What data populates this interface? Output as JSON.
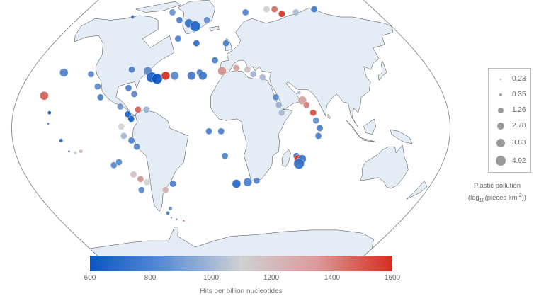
{
  "colors": {
    "ocean": "#ffffff",
    "land": "#e4ecf5",
    "coast": "#2b2b2b",
    "frame": "#8a8a8a",
    "scale_low": "#0a56c3",
    "scale_mid": "#cfd1d4",
    "scale_high": "#d62c1e"
  },
  "size_legend": {
    "values": [
      "0.23",
      "0.35",
      "1.26",
      "2.78",
      "3.83",
      "4.92"
    ],
    "title_line1": "Plastic pollution",
    "title_line2_prefix": "(log",
    "title_line2_sub": "10",
    "title_line2_mid": "(pieces km",
    "title_line2_sup": "-2",
    "title_line2_suffix": "))"
  },
  "color_scale": {
    "ticks": [
      "600",
      "800",
      "1000",
      "1200",
      "1400",
      "1600"
    ],
    "title": "Hits per billion nucleotides",
    "min": 600,
    "max": 1600
  },
  "samples": [
    {
      "lon": -117,
      "lat": 72,
      "value": 720,
      "plastic": 1.26
    },
    {
      "lon": -72,
      "lat": 75,
      "value": 840,
      "plastic": 2.78
    },
    {
      "lon": -60,
      "lat": 70,
      "value": 760,
      "plastic": 2.78
    },
    {
      "lon": -48,
      "lat": 68,
      "value": 700,
      "plastic": 3.83
    },
    {
      "lon": -40,
      "lat": 66,
      "value": 650,
      "plastic": 4.92
    },
    {
      "lon": -28,
      "lat": 70,
      "value": 820,
      "plastic": 2.78
    },
    {
      "lon": -55,
      "lat": 58,
      "value": 760,
      "plastic": 2.78
    },
    {
      "lon": -35,
      "lat": 55,
      "value": 700,
      "plastic": 2.78
    },
    {
      "lon": 18,
      "lat": 75,
      "value": 780,
      "plastic": 2.78
    },
    {
      "lon": 45,
      "lat": 77,
      "value": 1100,
      "plastic": 2.78
    },
    {
      "lon": 55,
      "lat": 77,
      "value": 1400,
      "plastic": 2.78
    },
    {
      "lon": 62,
      "lat": 74,
      "value": 1580,
      "plastic": 2.78
    },
    {
      "lon": 80,
      "lat": 75,
      "value": 1000,
      "plastic": 2.78
    },
    {
      "lon": 105,
      "lat": 77,
      "value": 740,
      "plastic": 2.78
    },
    {
      "lon": -5,
      "lat": 55,
      "value": 760,
      "plastic": 2.78
    },
    {
      "lon": -15,
      "lat": 44,
      "value": 760,
      "plastic": 2.78
    },
    {
      "lon": -28,
      "lat": 36,
      "value": 750,
      "plastic": 2.78
    },
    {
      "lon": -8,
      "lat": 37,
      "value": 1300,
      "plastic": 3.83
    },
    {
      "lon": 5,
      "lat": 39,
      "value": 1250,
      "plastic": 2.78
    },
    {
      "lon": 15,
      "lat": 38,
      "value": 1150,
      "plastic": 2.78
    },
    {
      "lon": 20,
      "lat": 35,
      "value": 980,
      "plastic": 2.78
    },
    {
      "lon": 28,
      "lat": 33,
      "value": 1000,
      "plastic": 2.78
    },
    {
      "lon": -90,
      "lat": 38,
      "value": 760,
      "plastic": 2.78
    },
    {
      "lon": -75,
      "lat": 37,
      "value": 800,
      "plastic": 3.83
    },
    {
      "lon": -70,
      "lat": 33,
      "value": 640,
      "plastic": 4.92
    },
    {
      "lon": -65,
      "lat": 32,
      "value": 600,
      "plastic": 4.92
    },
    {
      "lon": -58,
      "lat": 34,
      "value": 1600,
      "plastic": 3.83
    },
    {
      "lon": -50,
      "lat": 34,
      "value": 800,
      "plastic": 3.83
    },
    {
      "lon": -35,
      "lat": 34,
      "value": 740,
      "plastic": 3.83
    },
    {
      "lon": -25,
      "lat": 34,
      "value": 720,
      "plastic": 3.83
    },
    {
      "lon": -150,
      "lat": 36,
      "value": 780,
      "plastic": 3.83
    },
    {
      "lon": -125,
      "lat": 35,
      "value": 800,
      "plastic": 2.78
    },
    {
      "lon": -158,
      "lat": 21,
      "value": 1450,
      "plastic": 3.83
    },
    {
      "lon": -115,
      "lat": 27,
      "value": 800,
      "plastic": 2.78
    },
    {
      "lon": -110,
      "lat": 20,
      "value": 760,
      "plastic": 2.78
    },
    {
      "lon": -88,
      "lat": 26,
      "value": 760,
      "plastic": 2.78
    },
    {
      "lon": -82,
      "lat": 22,
      "value": 800,
      "plastic": 2.78
    },
    {
      "lon": -92,
      "lat": 14,
      "value": 860,
      "plastic": 2.78
    },
    {
      "lon": -85,
      "lat": 9,
      "value": 640,
      "plastic": 2.78
    },
    {
      "lon": -82,
      "lat": 6,
      "value": 620,
      "plastic": 2.78
    },
    {
      "lon": -77,
      "lat": 12,
      "value": 1450,
      "plastic": 2.78
    },
    {
      "lon": -70,
      "lat": 12,
      "value": 960,
      "plastic": 2.78
    },
    {
      "lon": -150,
      "lat": 10,
      "value": 640,
      "plastic": 1.26
    },
    {
      "lon": -150,
      "lat": 3,
      "value": 700,
      "plastic": 0.35
    },
    {
      "lon": -140,
      "lat": -8,
      "value": 640,
      "plastic": 1.26
    },
    {
      "lon": -135,
      "lat": -15,
      "value": 700,
      "plastic": 0.35
    },
    {
      "lon": -130,
      "lat": -16,
      "value": 1100,
      "plastic": 1.26
    },
    {
      "lon": -125,
      "lat": -15,
      "value": 1200,
      "plastic": 1.26
    },
    {
      "lon": -90,
      "lat": 1,
      "value": 1100,
      "plastic": 2.78
    },
    {
      "lon": -88,
      "lat": -5,
      "value": 1000,
      "plastic": 2.78
    },
    {
      "lon": -82,
      "lat": -8,
      "value": 760,
      "plastic": 2.78
    },
    {
      "lon": -78,
      "lat": -12,
      "value": 780,
      "plastic": 2.78
    },
    {
      "lon": -100,
      "lat": -24,
      "value": 800,
      "plastic": 2.78
    },
    {
      "lon": -95,
      "lat": -22,
      "value": 800,
      "plastic": 2.78
    },
    {
      "lon": -85,
      "lat": -30,
      "value": 1150,
      "plastic": 2.78
    },
    {
      "lon": -80,
      "lat": -33,
      "value": 1280,
      "plastic": 2.78
    },
    {
      "lon": -75,
      "lat": -35,
      "value": 1100,
      "plastic": 2.78
    },
    {
      "lon": -82,
      "lat": -40,
      "value": 800,
      "plastic": 2.78
    },
    {
      "lon": -60,
      "lat": -40,
      "value": 1200,
      "plastic": 2.78
    },
    {
      "lon": -52,
      "lat": -36,
      "value": 760,
      "plastic": 2.78
    },
    {
      "lon": -60,
      "lat": -52,
      "value": 800,
      "plastic": 1.26
    },
    {
      "lon": -64,
      "lat": -55,
      "value": 760,
      "plastic": 1.26
    },
    {
      "lon": -62,
      "lat": -58,
      "value": 800,
      "plastic": 0.23
    },
    {
      "lon": -57,
      "lat": -59,
      "value": 720,
      "plastic": 0.23
    },
    {
      "lon": -50,
      "lat": -60,
      "value": 1500,
      "plastic": 0.23
    },
    {
      "lon": -18,
      "lat": -2,
      "value": 760,
      "plastic": 2.78
    },
    {
      "lon": -8,
      "lat": -2,
      "value": 760,
      "plastic": 2.78
    },
    {
      "lon": -5,
      "lat": -18,
      "value": 780,
      "plastic": 2.78
    },
    {
      "lon": 5,
      "lat": -36,
      "value": 660,
      "plastic": 3.83
    },
    {
      "lon": 15,
      "lat": -35,
      "value": 760,
      "plastic": 3.83
    },
    {
      "lon": 23,
      "lat": -34,
      "value": 780,
      "plastic": 2.78
    },
    {
      "lon": 38,
      "lat": 20,
      "value": 800,
      "plastic": 2.78
    },
    {
      "lon": 40,
      "lat": 15,
      "value": 960,
      "plastic": 2.78
    },
    {
      "lon": 42,
      "lat": 10,
      "value": 1000,
      "plastic": 2.78
    },
    {
      "lon": 58,
      "lat": 23,
      "value": 1000,
      "plastic": 1.26
    },
    {
      "lon": 60,
      "lat": 18,
      "value": 1250,
      "plastic": 3.83
    },
    {
      "lon": 63,
      "lat": 15,
      "value": 1350,
      "plastic": 2.78
    },
    {
      "lon": 68,
      "lat": 10,
      "value": 1500,
      "plastic": 2.78
    },
    {
      "lon": 70,
      "lat": 5,
      "value": 820,
      "plastic": 2.78
    },
    {
      "lon": 73,
      "lat": 0,
      "value": 760,
      "plastic": 2.78
    },
    {
      "lon": 72,
      "lat": -5,
      "value": 760,
      "plastic": 2.78
    },
    {
      "lon": 55,
      "lat": -18,
      "value": 760,
      "plastic": 2.78
    },
    {
      "lon": 57,
      "lat": -20,
      "value": 1580,
      "plastic": 3.83
    },
    {
      "lon": 60,
      "lat": -20,
      "value": 720,
      "plastic": 3.83
    },
    {
      "lon": 58,
      "lat": -23,
      "value": 700,
      "plastic": 4.92
    }
  ]
}
